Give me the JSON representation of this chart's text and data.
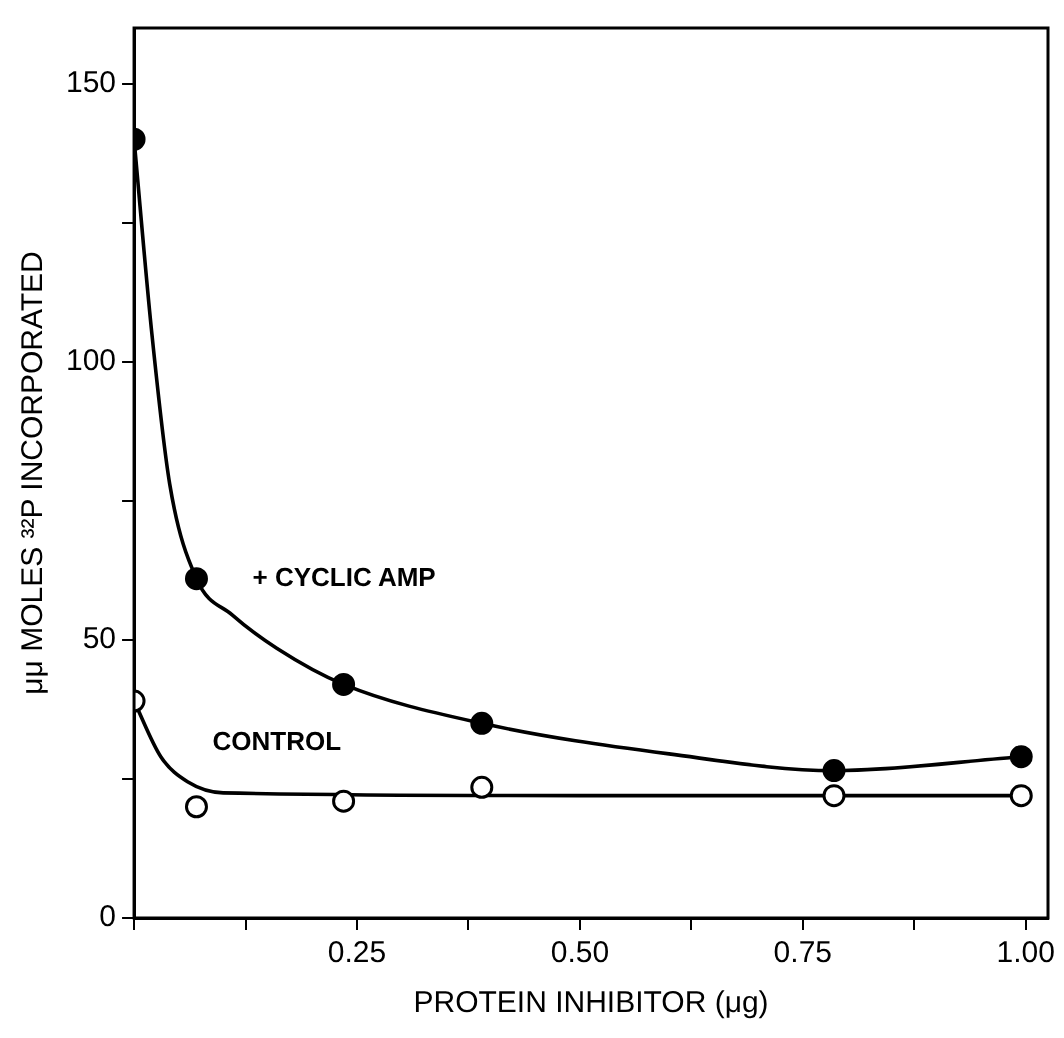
{
  "chart_data": {
    "type": "scatter",
    "xlabel": "PROTEIN INHIBITOR (μg)",
    "ylabel": "μμ MOLES ³²P INCORPORATED",
    "xlim": [
      0,
      1.025
    ],
    "ylim": [
      0,
      160
    ],
    "xticks": [
      {
        "value": 0,
        "label": null
      },
      {
        "value": 0.125,
        "label": null
      },
      {
        "value": 0.25,
        "label": "0.25"
      },
      {
        "value": 0.375,
        "label": null
      },
      {
        "value": 0.5,
        "label": "0.50"
      },
      {
        "value": 0.625,
        "label": null
      },
      {
        "value": 0.75,
        "label": "0.75"
      },
      {
        "value": 0.875,
        "label": null
      },
      {
        "value": 1,
        "label": "1.00"
      }
    ],
    "yticks": [
      0,
      {
        "value": 25,
        "label": null
      },
      50,
      {
        "value": 75,
        "label": null
      },
      100,
      {
        "value": 125,
        "label": null
      },
      150
    ],
    "grid": false,
    "legend": false,
    "series": [
      {
        "name": "+ CYCLIC AMP",
        "marker": "circle",
        "color": "#000000",
        "x": [
          0,
          0.07,
          0.235,
          0.39,
          0.785,
          0.995
        ],
        "values": [
          140,
          61,
          42,
          35,
          26.5,
          29
        ]
      },
      {
        "name": "CONTROL",
        "marker": "circle",
        "color": "#000000",
        "x": [
          0,
          0.07,
          0.235,
          0.39,
          0.785,
          0.995
        ],
        "values": [
          39,
          20,
          21,
          23.5,
          22,
          22
        ]
      },
      {
        "type": "line",
        "marker": "none",
        "color": "#000000",
        "x": [
          0,
          0.02,
          0.04,
          0.07,
          0.11,
          0.16,
          0.235,
          0.39,
          0.6,
          0.785,
          0.995
        ],
        "values": [
          140,
          105,
          78,
          61,
          54.5,
          48.5,
          42,
          35,
          29.5,
          26.5,
          29
        ]
      },
      {
        "type": "line",
        "marker": "none",
        "color": "#000000",
        "x": [
          0,
          0.03,
          0.06,
          0.1,
          0.5,
          0.995
        ],
        "values": [
          39,
          29,
          24.5,
          22.5,
          22,
          22
        ]
      }
    ]
  }
}
